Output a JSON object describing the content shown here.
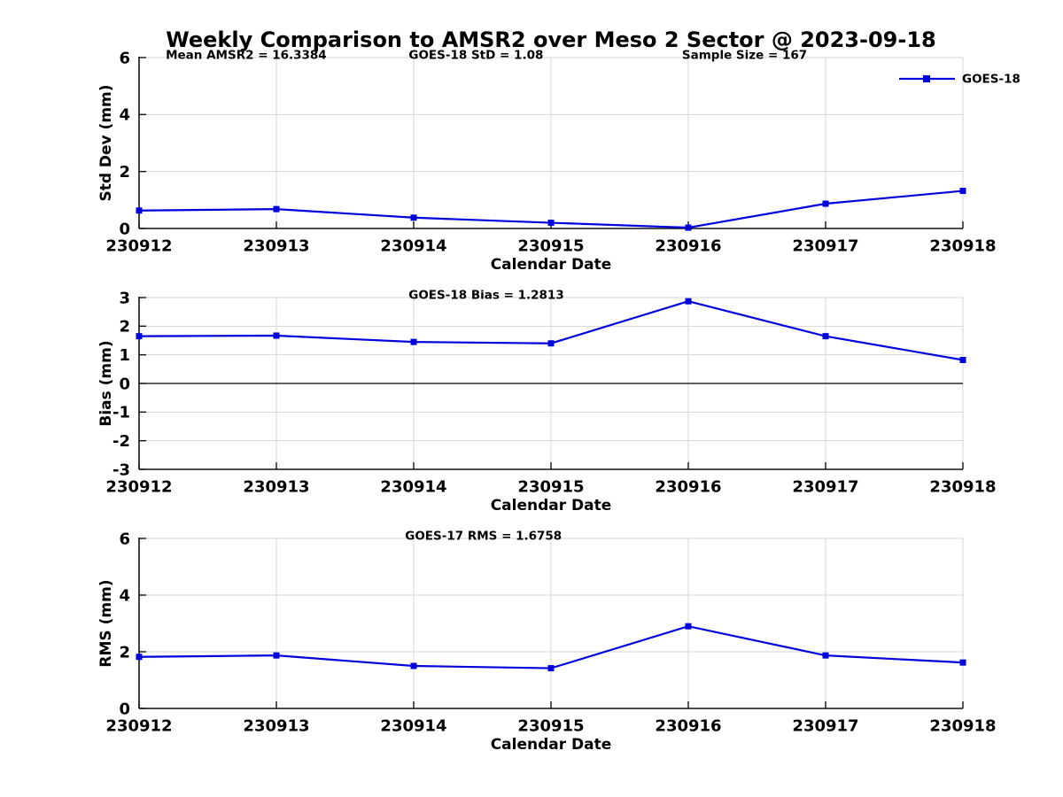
{
  "title": "Weekly Comparison to AMSR2 over Meso 2 Sector @ 2023-09-18",
  "legend": {
    "label": "GOES-18"
  },
  "colors": {
    "line": "#0000dd",
    "grid": "#d6d6d6",
    "axis": "#111111",
    "zero_line": "#000000",
    "text": "#000000",
    "background": "#ffffff"
  },
  "chart_data": [
    {
      "type": "line",
      "name": "std-dev",
      "title": "",
      "annotations": [
        "Mean AMSR2 = 16.3384",
        "GOES-18 StD = 1.08",
        "Sample Size = 167"
      ],
      "categories": [
        "230912",
        "230913",
        "230914",
        "230915",
        "230916",
        "230917",
        "230918"
      ],
      "series": [
        {
          "name": "GOES-18",
          "values": [
            0.63,
            0.68,
            0.38,
            0.2,
            0.03,
            0.87,
            1.32
          ]
        }
      ],
      "xlabel": "Calendar Date",
      "ylabel": "Std Dev (mm)",
      "ylim": [
        0,
        6
      ],
      "yticks": [
        0,
        2,
        4,
        6
      ],
      "grid": true,
      "zero_line": false,
      "legend_position": "top-right"
    },
    {
      "type": "line",
      "name": "bias",
      "title": "",
      "annotations": [
        "GOES-18 Bias  = 1.2813"
      ],
      "categories": [
        "230912",
        "230913",
        "230914",
        "230915",
        "230916",
        "230917",
        "230918"
      ],
      "series": [
        {
          "name": "GOES-18",
          "values": [
            1.65,
            1.67,
            1.45,
            1.4,
            2.87,
            1.65,
            0.82
          ]
        }
      ],
      "xlabel": "Calendar Date",
      "ylabel": "Bias (mm)",
      "ylim": [
        -3,
        3
      ],
      "yticks": [
        -3,
        -2,
        -1,
        0,
        1,
        2,
        3
      ],
      "grid": true,
      "zero_line": true,
      "legend_position": "none"
    },
    {
      "type": "line",
      "name": "rms",
      "title": "",
      "annotations": [
        "GOES-17 RMS = 1.6758"
      ],
      "categories": [
        "230912",
        "230913",
        "230914",
        "230915",
        "230916",
        "230917",
        "230918"
      ],
      "series": [
        {
          "name": "GOES-18",
          "values": [
            1.82,
            1.87,
            1.5,
            1.42,
            2.9,
            1.87,
            1.62
          ]
        }
      ],
      "xlabel": "Calendar Date",
      "ylabel": "RMS (mm)",
      "ylim": [
        0,
        6
      ],
      "yticks": [
        0,
        2,
        4,
        6
      ],
      "grid": true,
      "zero_line": false,
      "legend_position": "none"
    }
  ]
}
